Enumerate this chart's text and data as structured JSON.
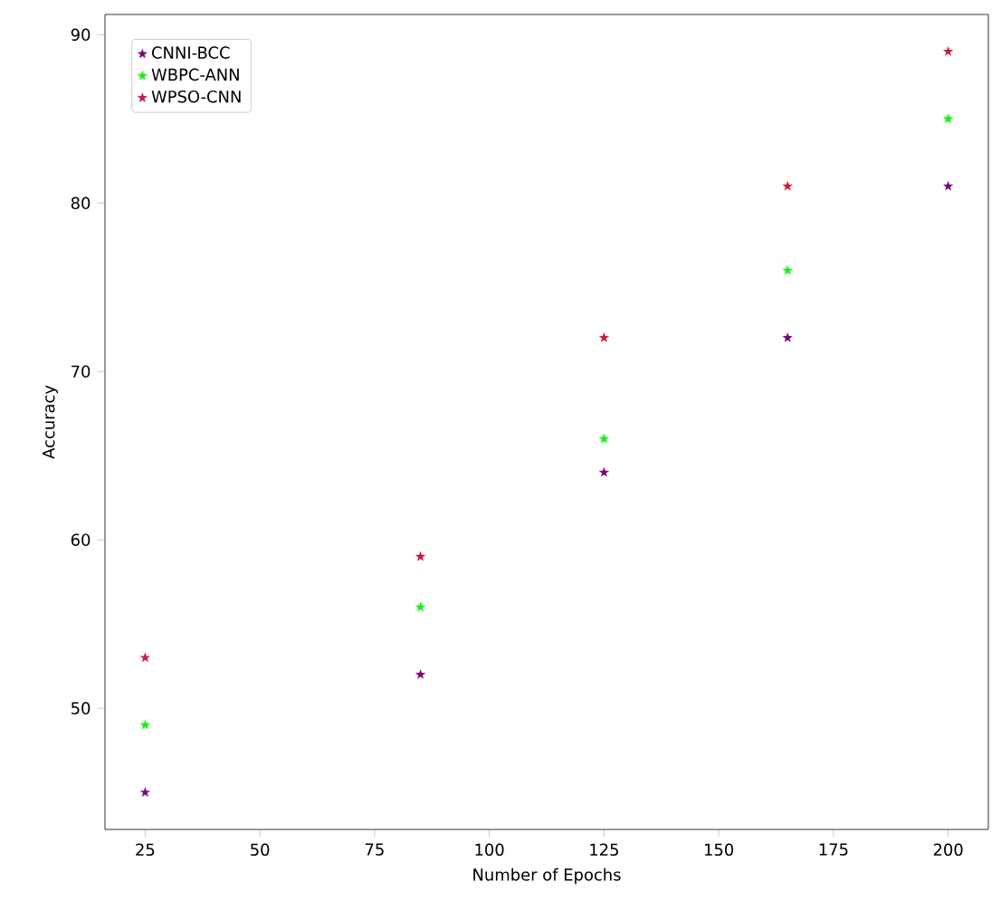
{
  "chart_data": {
    "type": "scatter",
    "xlabel": "Number of Epochs",
    "ylabel": "Accuracy",
    "x": [
      25,
      85,
      125,
      165,
      200
    ],
    "series": [
      {
        "name": "CNNI-BCC",
        "color": "#800080",
        "values": [
          45,
          52,
          64,
          72,
          81
        ]
      },
      {
        "name": "WBPC-ANN",
        "color": "#00ff00",
        "values": [
          49,
          56,
          66,
          76,
          85
        ]
      },
      {
        "name": "WPSO-CNN",
        "color": "#dc143c",
        "values": [
          53,
          59,
          72,
          81,
          89
        ]
      }
    ],
    "xlim": [
      16.25,
      208.75
    ],
    "ylim": [
      42.8,
      91.2
    ],
    "xticks": [
      25,
      50,
      75,
      100,
      125,
      150,
      175,
      200
    ],
    "yticks": [
      50,
      60,
      70,
      80,
      90
    ],
    "marker": "star",
    "legend": "top left",
    "grid": false
  }
}
